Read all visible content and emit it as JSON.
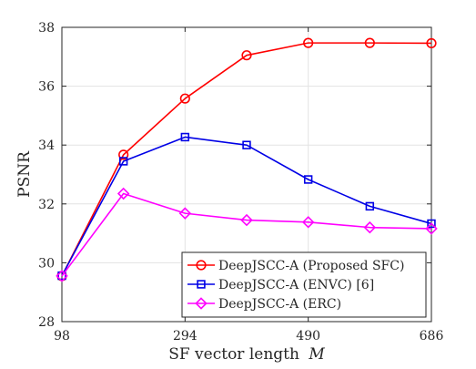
{
  "chart_data": {
    "type": "line",
    "title": "",
    "xlabel": "SF vector length",
    "xlabel_symbol": "M",
    "ylabel": "PSNR",
    "xlim": [
      98,
      686
    ],
    "ylim": [
      28,
      38
    ],
    "xticks": [
      98,
      294,
      490,
      686
    ],
    "yticks": [
      28,
      30,
      32,
      34,
      36,
      38
    ],
    "grid": true,
    "legend_position": "bottom-right",
    "x": [
      98,
      196,
      294,
      392,
      490,
      588,
      686
    ],
    "series": [
      {
        "name": "DeepJSCC-A (Proposed SFC)",
        "marker": "circle",
        "color": "#ff0000",
        "values": [
          29.55,
          33.67,
          35.58,
          37.05,
          37.47,
          37.47,
          37.46
        ]
      },
      {
        "name": "DeepJSCC-A (ENVC) [6]",
        "marker": "square",
        "color": "#0000e6",
        "values": [
          29.56,
          33.45,
          34.27,
          34.0,
          32.83,
          31.92,
          31.33
        ]
      },
      {
        "name": "DeepJSCC-A (ERC)",
        "marker": "diamond",
        "color": "#ff00ff",
        "values": [
          29.55,
          32.35,
          31.68,
          31.45,
          31.38,
          31.2,
          31.16
        ]
      }
    ]
  }
}
